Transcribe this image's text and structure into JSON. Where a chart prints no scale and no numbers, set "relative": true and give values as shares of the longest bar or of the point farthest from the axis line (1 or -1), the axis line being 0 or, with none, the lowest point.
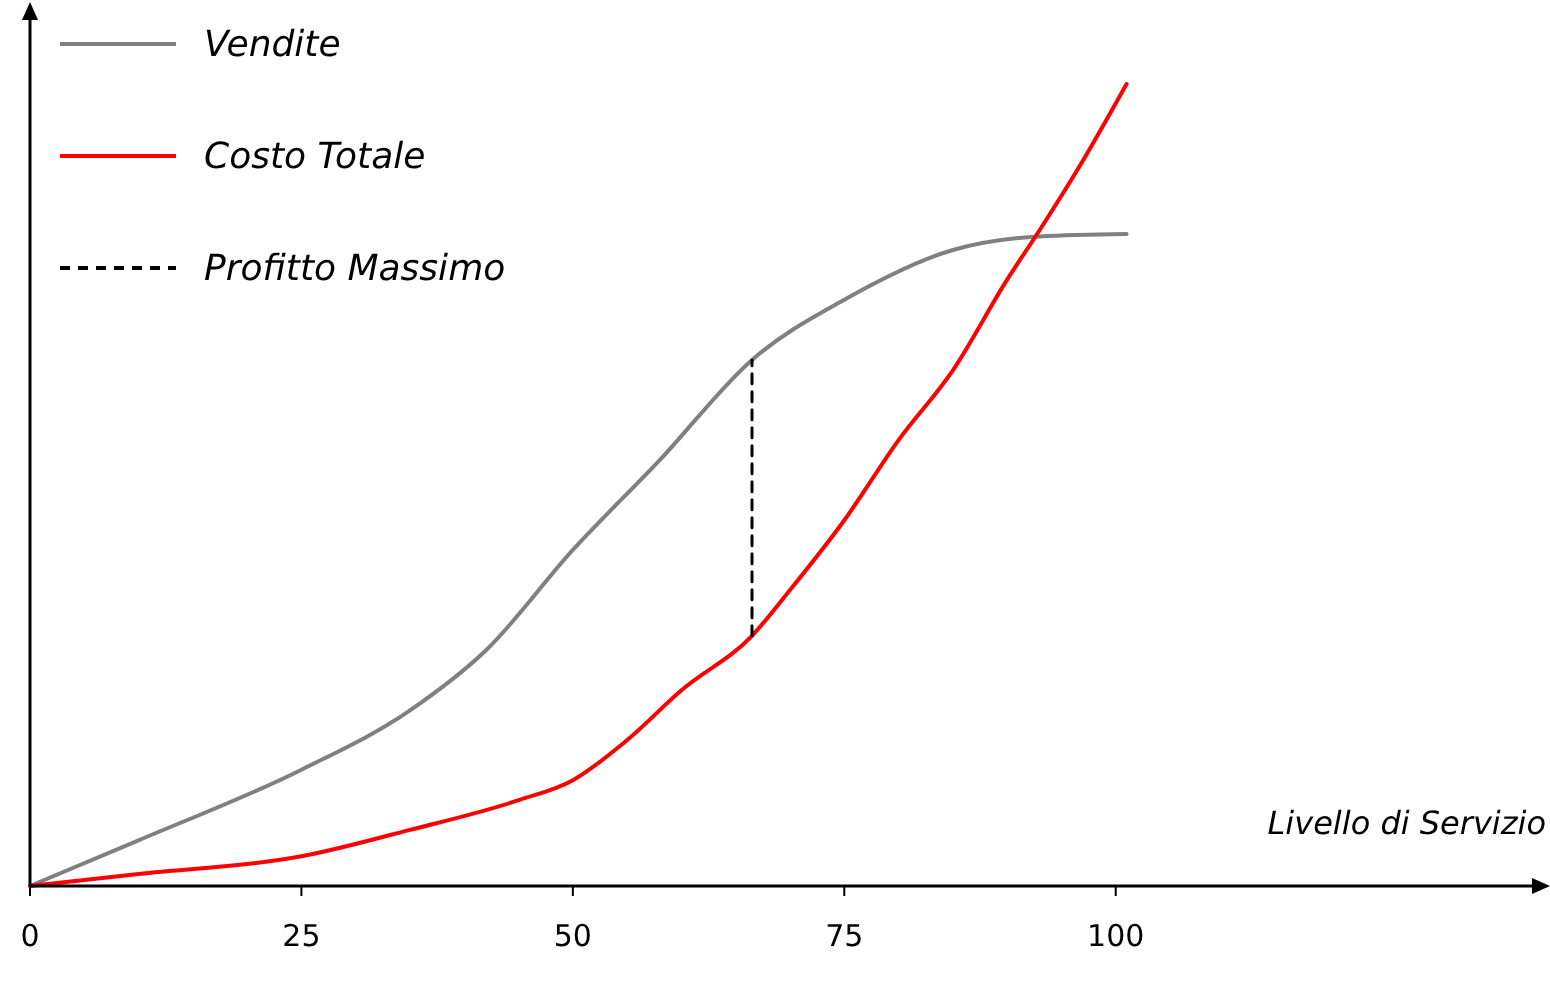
{
  "chart_data": {
    "type": "line",
    "relative": true,
    "xlabel": "Livello di Servizio",
    "xlim": [
      0,
      140
    ],
    "xticks": [
      0,
      25,
      50,
      75,
      100
    ],
    "legend": "top left",
    "series": [
      {
        "name": "Vendite",
        "color": "#808080",
        "x": [
          0,
          10,
          25,
          35,
          42,
          50,
          58,
          66.5,
          75,
          85,
          93,
          101
        ],
        "values": [
          0,
          0.057,
          0.145,
          0.219,
          0.294,
          0.419,
          0.531,
          0.656,
          0.731,
          0.793,
          0.81,
          0.813
        ]
      },
      {
        "name": "Costo Totale",
        "color": "#ff0000",
        "x": [
          0,
          10,
          25,
          35,
          45,
          50,
          55,
          60,
          66.5,
          70,
          75,
          80,
          85,
          90,
          93,
          97,
          101
        ],
        "values": [
          0,
          0.015,
          0.037,
          0.07,
          0.107,
          0.132,
          0.182,
          0.244,
          0.312,
          0.369,
          0.456,
          0.556,
          0.643,
          0.756,
          0.818,
          0.905,
          1
        ]
      },
      {
        "name": "Profitto Massimo",
        "color": "#000000",
        "line_style": "dashed",
        "x": [
          66.5,
          66.5
        ],
        "values": [
          0.312,
          0.656
        ]
      }
    ]
  }
}
